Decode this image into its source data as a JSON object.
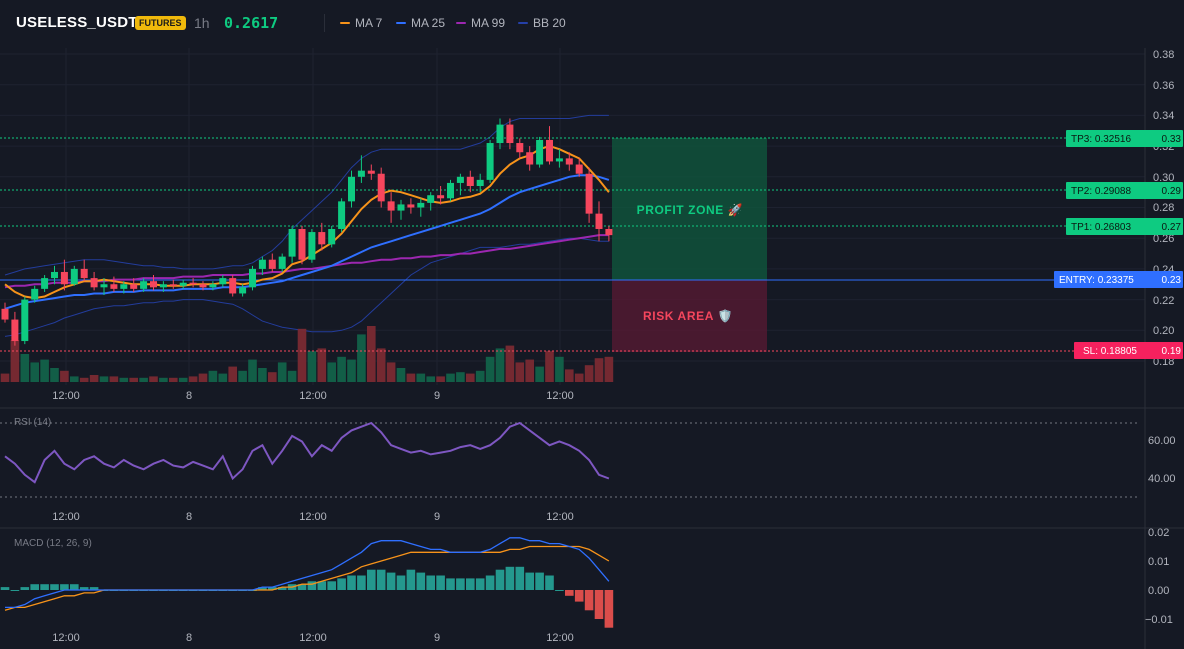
{
  "header": {
    "symbol": "USELESS_USDT",
    "badge": "FUTURES",
    "timeframe": "1h",
    "price": "0.2617",
    "legend": [
      {
        "label": "MA 7",
        "color": "#f7931a"
      },
      {
        "label": "MA 25",
        "color": "#2f6fff"
      },
      {
        "label": "MA 99",
        "color": "#9c27b0"
      },
      {
        "label": "BB 20",
        "color": "#2540a8"
      }
    ]
  },
  "colors": {
    "up": "#0ecb81",
    "down": "#f6465d",
    "ma7": "#f7931a",
    "ma25": "#2f6fff",
    "ma99": "#9c27b0",
    "bb": "#2540a8",
    "rsi": "#7e57c2",
    "macd": "#2f6fff",
    "signal": "#f7931a"
  },
  "price_axis": {
    "ticks": [
      "0.38",
      "0.36",
      "0.34",
      "0.32",
      "0.30",
      "0.28",
      "0.26",
      "0.24",
      "0.22",
      "0.20",
      "0.18"
    ]
  },
  "time_axis": {
    "labels": [
      "12:00",
      "8",
      "12:00",
      "9",
      "12:00"
    ]
  },
  "levels": {
    "tp3": {
      "label": "TP3: 0.32516",
      "axis": "0.33",
      "value": 0.32516
    },
    "tp2": {
      "label": "TP2: 0.29088",
      "axis": "0.29",
      "value": 0.29088
    },
    "tp1": {
      "label": "TP1: 0.26803",
      "axis": "0.27",
      "value": 0.26803
    },
    "entry": {
      "label": "ENTRY: 0.23375",
      "axis": "0.23",
      "value": 0.23375
    },
    "sl": {
      "label": "SL: 0.18805",
      "axis": "0.19",
      "value": 0.18805
    }
  },
  "zones": {
    "profit": "PROFIT ZONE 🚀",
    "risk": "RISK AREA 🛡️"
  },
  "rsi": {
    "title": "RSI (14)",
    "ticks": [
      "60.00",
      "40.00"
    ]
  },
  "macd": {
    "title": "MACD (12, 26, 9)",
    "ticks": [
      "0.02",
      "0.01",
      "0.00",
      "−0.01"
    ]
  },
  "chart_data": {
    "type": "candlestick",
    "candles_ohlc": [
      [
        0.214,
        0.218,
        0.205,
        0.207
      ],
      [
        0.207,
        0.212,
        0.19,
        0.193
      ],
      [
        0.193,
        0.222,
        0.191,
        0.22
      ],
      [
        0.22,
        0.229,
        0.218,
        0.227
      ],
      [
        0.227,
        0.236,
        0.225,
        0.234
      ],
      [
        0.234,
        0.242,
        0.23,
        0.238
      ],
      [
        0.238,
        0.246,
        0.226,
        0.23
      ],
      [
        0.23,
        0.242,
        0.229,
        0.24
      ],
      [
        0.24,
        0.246,
        0.232,
        0.234
      ],
      [
        0.234,
        0.238,
        0.226,
        0.228
      ],
      [
        0.228,
        0.234,
        0.223,
        0.23
      ],
      [
        0.23,
        0.235,
        0.225,
        0.227
      ],
      [
        0.227,
        0.232,
        0.224,
        0.23
      ],
      [
        0.23,
        0.234,
        0.225,
        0.227
      ],
      [
        0.227,
        0.234,
        0.225,
        0.232
      ],
      [
        0.232,
        0.236,
        0.226,
        0.228
      ],
      [
        0.228,
        0.232,
        0.225,
        0.23
      ],
      [
        0.23,
        0.233,
        0.227,
        0.229
      ],
      [
        0.229,
        0.233,
        0.227,
        0.231
      ],
      [
        0.231,
        0.234,
        0.228,
        0.23
      ],
      [
        0.23,
        0.232,
        0.226,
        0.228
      ],
      [
        0.228,
        0.232,
        0.226,
        0.23
      ],
      [
        0.23,
        0.236,
        0.228,
        0.234
      ],
      [
        0.234,
        0.236,
        0.222,
        0.224
      ],
      [
        0.224,
        0.23,
        0.222,
        0.228
      ],
      [
        0.228,
        0.242,
        0.226,
        0.24
      ],
      [
        0.24,
        0.248,
        0.236,
        0.246
      ],
      [
        0.246,
        0.25,
        0.238,
        0.24
      ],
      [
        0.24,
        0.25,
        0.238,
        0.248
      ],
      [
        0.248,
        0.268,
        0.244,
        0.266
      ],
      [
        0.266,
        0.268,
        0.243,
        0.246
      ],
      [
        0.246,
        0.266,
        0.244,
        0.264
      ],
      [
        0.264,
        0.27,
        0.252,
        0.256
      ],
      [
        0.256,
        0.268,
        0.254,
        0.266
      ],
      [
        0.266,
        0.286,
        0.264,
        0.284
      ],
      [
        0.284,
        0.304,
        0.28,
        0.3
      ],
      [
        0.3,
        0.314,
        0.296,
        0.304
      ],
      [
        0.304,
        0.308,
        0.298,
        0.302
      ],
      [
        0.302,
        0.306,
        0.28,
        0.284
      ],
      [
        0.284,
        0.29,
        0.27,
        0.278
      ],
      [
        0.278,
        0.285,
        0.272,
        0.282
      ],
      [
        0.282,
        0.286,
        0.276,
        0.28
      ],
      [
        0.28,
        0.286,
        0.274,
        0.283
      ],
      [
        0.283,
        0.29,
        0.278,
        0.288
      ],
      [
        0.288,
        0.294,
        0.282,
        0.286
      ],
      [
        0.286,
        0.298,
        0.284,
        0.296
      ],
      [
        0.296,
        0.302,
        0.288,
        0.3
      ],
      [
        0.3,
        0.304,
        0.29,
        0.294
      ],
      [
        0.294,
        0.302,
        0.29,
        0.298
      ],
      [
        0.298,
        0.324,
        0.296,
        0.322
      ],
      [
        0.322,
        0.338,
        0.318,
        0.334
      ],
      [
        0.334,
        0.338,
        0.318,
        0.322
      ],
      [
        0.322,
        0.325,
        0.312,
        0.316
      ],
      [
        0.316,
        0.32,
        0.304,
        0.308
      ],
      [
        0.308,
        0.326,
        0.306,
        0.324
      ],
      [
        0.324,
        0.333,
        0.308,
        0.31
      ],
      [
        0.31,
        0.318,
        0.306,
        0.312
      ],
      [
        0.312,
        0.316,
        0.304,
        0.308
      ],
      [
        0.308,
        0.312,
        0.3,
        0.302
      ],
      [
        0.302,
        0.306,
        0.27,
        0.276
      ],
      [
        0.276,
        0.284,
        0.258,
        0.266
      ],
      [
        0.266,
        0.268,
        0.258,
        0.262
      ]
    ],
    "ma7": [
      0.23,
      0.225,
      0.222,
      0.221,
      0.222,
      0.225,
      0.228,
      0.23,
      0.232,
      0.232,
      0.233,
      0.232,
      0.231,
      0.23,
      0.23,
      0.23,
      0.229,
      0.229,
      0.229,
      0.23,
      0.23,
      0.23,
      0.231,
      0.231,
      0.23,
      0.231,
      0.233,
      0.234,
      0.237,
      0.243,
      0.245,
      0.249,
      0.253,
      0.257,
      0.263,
      0.271,
      0.279,
      0.285,
      0.289,
      0.291,
      0.29,
      0.288,
      0.286,
      0.284,
      0.283,
      0.284,
      0.286,
      0.287,
      0.289,
      0.294,
      0.302,
      0.308,
      0.312,
      0.314,
      0.318,
      0.32,
      0.318,
      0.315,
      0.312,
      0.305,
      0.298,
      0.29
    ],
    "ma25": [
      0.214,
      0.216,
      0.218,
      0.219,
      0.22,
      0.221,
      0.222,
      0.223,
      0.223,
      0.224,
      0.224,
      0.225,
      0.225,
      0.225,
      0.226,
      0.226,
      0.226,
      0.226,
      0.227,
      0.227,
      0.227,
      0.227,
      0.228,
      0.228,
      0.228,
      0.229,
      0.23,
      0.231,
      0.232,
      0.234,
      0.236,
      0.238,
      0.24,
      0.242,
      0.245,
      0.248,
      0.251,
      0.254,
      0.256,
      0.258,
      0.26,
      0.262,
      0.264,
      0.266,
      0.268,
      0.27,
      0.272,
      0.274,
      0.276,
      0.279,
      0.283,
      0.287,
      0.29,
      0.292,
      0.294,
      0.296,
      0.298,
      0.3,
      0.301,
      0.301,
      0.3,
      0.298
    ],
    "ma99": [
      0.228,
      0.229,
      0.229,
      0.23,
      0.23,
      0.231,
      0.231,
      0.231,
      0.232,
      0.232,
      0.232,
      0.233,
      0.233,
      0.233,
      0.234,
      0.234,
      0.234,
      0.234,
      0.235,
      0.235,
      0.235,
      0.236,
      0.236,
      0.236,
      0.236,
      0.237,
      0.237,
      0.238,
      0.238,
      0.239,
      0.24,
      0.24,
      0.241,
      0.242,
      0.243,
      0.244,
      0.244,
      0.245,
      0.246,
      0.246,
      0.247,
      0.247,
      0.248,
      0.248,
      0.249,
      0.249,
      0.25,
      0.25,
      0.251,
      0.252,
      0.253,
      0.253,
      0.254,
      0.255,
      0.256,
      0.257,
      0.258,
      0.259,
      0.26,
      0.261,
      0.262,
      0.262
    ],
    "bb_upper": [
      0.236,
      0.238,
      0.24,
      0.241,
      0.242,
      0.243,
      0.244,
      0.245,
      0.246,
      0.246,
      0.246,
      0.245,
      0.244,
      0.243,
      0.242,
      0.242,
      0.241,
      0.241,
      0.24,
      0.24,
      0.24,
      0.24,
      0.241,
      0.242,
      0.242,
      0.244,
      0.248,
      0.252,
      0.258,
      0.266,
      0.272,
      0.278,
      0.284,
      0.29,
      0.298,
      0.306,
      0.312,
      0.316,
      0.318,
      0.318,
      0.318,
      0.318,
      0.318,
      0.318,
      0.318,
      0.318,
      0.318,
      0.32,
      0.322,
      0.326,
      0.332,
      0.336,
      0.338,
      0.338,
      0.338,
      0.338,
      0.338,
      0.338,
      0.339,
      0.34,
      0.34,
      0.34
    ],
    "bb_lower": [
      0.196,
      0.197,
      0.199,
      0.201,
      0.203,
      0.205,
      0.208,
      0.21,
      0.212,
      0.214,
      0.215,
      0.216,
      0.216,
      0.217,
      0.218,
      0.218,
      0.219,
      0.219,
      0.22,
      0.22,
      0.22,
      0.219,
      0.218,
      0.217,
      0.214,
      0.21,
      0.206,
      0.204,
      0.202,
      0.201,
      0.2,
      0.199,
      0.199,
      0.199,
      0.2,
      0.202,
      0.206,
      0.212,
      0.218,
      0.224,
      0.23,
      0.236,
      0.24,
      0.244,
      0.246,
      0.248,
      0.25,
      0.252,
      0.254,
      0.254,
      0.254,
      0.255,
      0.256,
      0.256,
      0.257,
      0.258,
      0.259,
      0.26,
      0.26,
      0.259,
      0.258,
      0.258
    ],
    "volume": [
      6,
      30,
      20,
      14,
      16,
      10,
      8,
      4,
      3,
      5,
      4,
      4,
      3,
      3,
      3,
      4,
      3,
      3,
      3,
      4,
      6,
      8,
      6,
      11,
      8,
      16,
      10,
      7,
      14,
      8,
      38,
      22,
      24,
      14,
      18,
      16,
      34,
      40,
      24,
      14,
      10,
      6,
      6,
      4,
      4,
      6,
      7,
      6,
      8,
      18,
      24,
      26,
      14,
      16,
      11,
      22,
      18,
      9,
      6,
      12,
      17,
      18
    ],
    "rsi": [
      52,
      48,
      42,
      38,
      50,
      55,
      48,
      45,
      50,
      52,
      48,
      46,
      50,
      47,
      45,
      48,
      50,
      47,
      46,
      49,
      47,
      45,
      52,
      40,
      45,
      55,
      58,
      48,
      55,
      63,
      60,
      52,
      58,
      55,
      62,
      66,
      68,
      70,
      65,
      58,
      56,
      54,
      55,
      53,
      54,
      55,
      57,
      58,
      56,
      58,
      62,
      68,
      70,
      66,
      62,
      58,
      60,
      58,
      55,
      50,
      42,
      40
    ],
    "macd": [
      -0.006,
      -0.006,
      -0.005,
      -0.003,
      -0.002,
      -0.001,
      0.0,
      0.0,
      0.0,
      0.0,
      0.0,
      0.0,
      0.0,
      0.0,
      0.0,
      0.0,
      0.0,
      0.0,
      0.0,
      0.0,
      0.0,
      0.0,
      0.0,
      0.0,
      0.0,
      0.0,
      0.001,
      0.001,
      0.002,
      0.003,
      0.004,
      0.005,
      0.006,
      0.007,
      0.009,
      0.011,
      0.013,
      0.016,
      0.017,
      0.017,
      0.017,
      0.016,
      0.015,
      0.014,
      0.014,
      0.013,
      0.013,
      0.013,
      0.013,
      0.014,
      0.016,
      0.018,
      0.018,
      0.017,
      0.017,
      0.016,
      0.016,
      0.015,
      0.014,
      0.011,
      0.007,
      0.003
    ],
    "signal": [
      -0.007,
      -0.006,
      -0.006,
      -0.005,
      -0.004,
      -0.003,
      -0.002,
      -0.002,
      -0.001,
      -0.001,
      0.0,
      0.0,
      0.0,
      0.0,
      0.0,
      0.0,
      0.0,
      0.0,
      0.0,
      0.0,
      0.0,
      0.0,
      0.0,
      0.0,
      0.0,
      0.0,
      0.0,
      0.0,
      0.001,
      0.001,
      0.002,
      0.002,
      0.003,
      0.004,
      0.005,
      0.006,
      0.008,
      0.009,
      0.01,
      0.011,
      0.012,
      0.013,
      0.013,
      0.013,
      0.013,
      0.013,
      0.013,
      0.013,
      0.013,
      0.013,
      0.013,
      0.014,
      0.014,
      0.015,
      0.015,
      0.015,
      0.015,
      0.015,
      0.015,
      0.014,
      0.012,
      0.01
    ]
  }
}
